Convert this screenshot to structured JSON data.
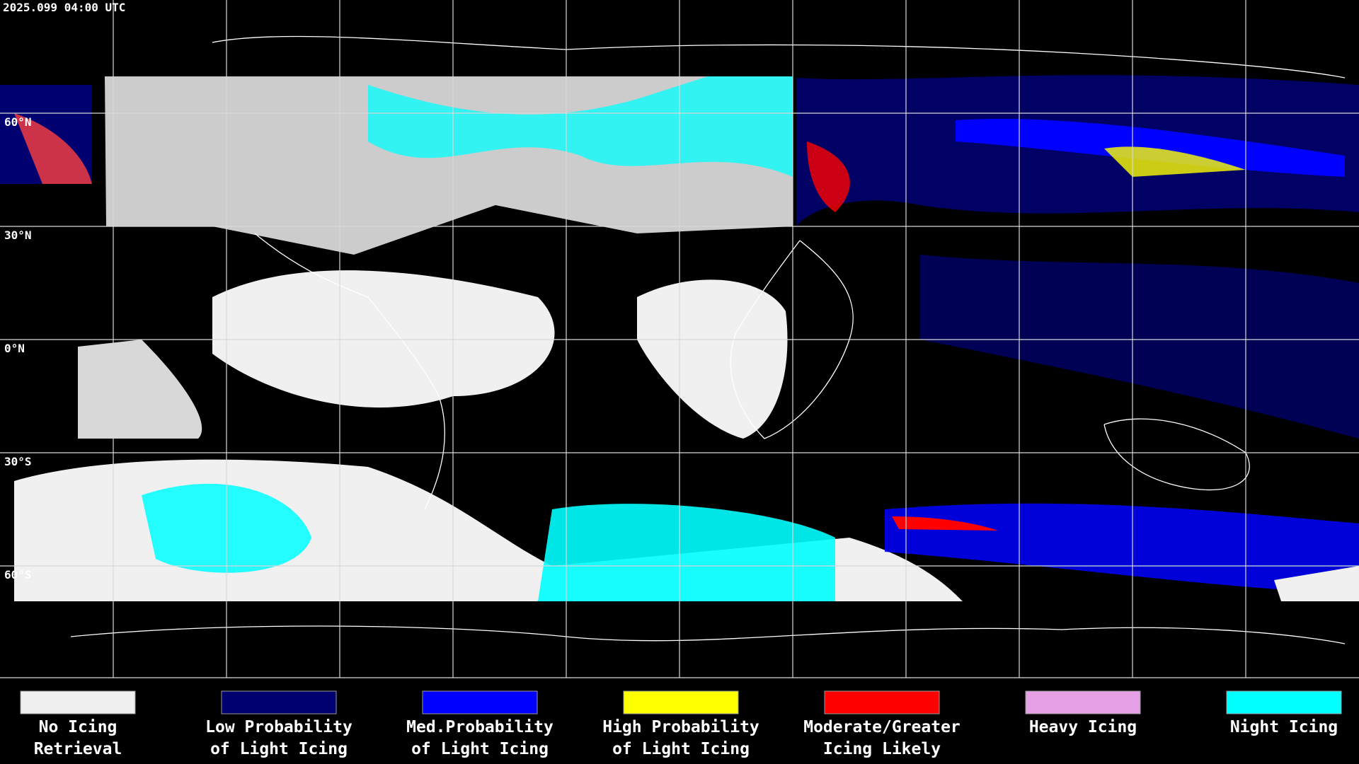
{
  "header": {
    "timestamp": "2025.099 04:00 UTC"
  },
  "map": {
    "grid_labels": [
      "60°N",
      "30°N",
      "0°N",
      "30°S",
      "60°S"
    ]
  },
  "legend": {
    "items": [
      {
        "lines": [
          "No Icing",
          "Retrieval"
        ],
        "color": "#f0f0f0"
      },
      {
        "lines": [
          "Low Probability",
          "of Light Icing"
        ],
        "color": "#000070"
      },
      {
        "lines": [
          "Med.Probability",
          "of Light Icing"
        ],
        "color": "#0000ff"
      },
      {
        "lines": [
          "High Probability",
          "of Light Icing"
        ],
        "color": "#ffff00"
      },
      {
        "lines": [
          "Moderate/Greater",
          "Icing Likely"
        ],
        "color": "#ff0000"
      },
      {
        "lines": [
          "Heavy Icing"
        ],
        "color": "#e6a0e6"
      },
      {
        "lines": [
          "Night Icing"
        ],
        "color": "#00ffff"
      }
    ]
  }
}
